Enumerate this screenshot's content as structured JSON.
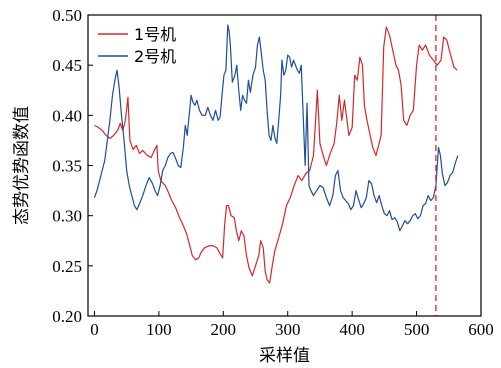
{
  "chart_data": {
    "type": "line",
    "xlabel": "采样值",
    "ylabel": "态势优势函数值",
    "xlim": [
      -10,
      600
    ],
    "ylim": [
      0.2,
      0.5
    ],
    "xticks": [
      0,
      100,
      200,
      300,
      400,
      500,
      600
    ],
    "yticks": [
      "0.20",
      "0.25",
      "0.30",
      "0.35",
      "0.40",
      "0.45",
      "0.50"
    ],
    "grid": false,
    "legend_position": "top-left",
    "vline": {
      "x": 530,
      "color": "#d62728",
      "style": "dashed"
    },
    "series": [
      {
        "name": "1号机",
        "color": "#d62728",
        "points": [
          [
            0,
            0.39
          ],
          [
            6,
            0.388
          ],
          [
            12,
            0.385
          ],
          [
            18,
            0.38
          ],
          [
            24,
            0.377
          ],
          [
            30,
            0.38
          ],
          [
            36,
            0.385
          ],
          [
            40,
            0.392
          ],
          [
            44,
            0.385
          ],
          [
            48,
            0.395
          ],
          [
            52,
            0.418
          ],
          [
            55,
            0.375
          ],
          [
            60,
            0.366
          ],
          [
            65,
            0.37
          ],
          [
            70,
            0.362
          ],
          [
            75,
            0.365
          ],
          [
            82,
            0.36
          ],
          [
            88,
            0.358
          ],
          [
            93,
            0.365
          ],
          [
            97,
            0.37
          ],
          [
            99,
            0.345
          ],
          [
            103,
            0.335
          ],
          [
            110,
            0.33
          ],
          [
            115,
            0.323
          ],
          [
            120,
            0.315
          ],
          [
            126,
            0.308
          ],
          [
            132,
            0.298
          ],
          [
            138,
            0.29
          ],
          [
            143,
            0.282
          ],
          [
            148,
            0.27
          ],
          [
            152,
            0.26
          ],
          [
            157,
            0.256
          ],
          [
            162,
            0.258
          ],
          [
            166,
            0.264
          ],
          [
            171,
            0.268
          ],
          [
            178,
            0.27
          ],
          [
            184,
            0.27
          ],
          [
            190,
            0.268
          ],
          [
            195,
            0.262
          ],
          [
            199,
            0.258
          ],
          [
            202,
            0.29
          ],
          [
            205,
            0.31
          ],
          [
            208,
            0.31
          ],
          [
            212,
            0.3
          ],
          [
            217,
            0.298
          ],
          [
            220,
            0.286
          ],
          [
            224,
            0.275
          ],
          [
            228,
            0.285
          ],
          [
            232,
            0.28
          ],
          [
            236,
            0.26
          ],
          [
            240,
            0.248
          ],
          [
            245,
            0.24
          ],
          [
            250,
            0.25
          ],
          [
            255,
            0.26
          ],
          [
            258,
            0.275
          ],
          [
            262,
            0.268
          ],
          [
            265,
            0.245
          ],
          [
            268,
            0.236
          ],
          [
            272,
            0.233
          ],
          [
            276,
            0.25
          ],
          [
            280,
            0.265
          ],
          [
            286,
            0.278
          ],
          [
            292,
            0.292
          ],
          [
            298,
            0.31
          ],
          [
            304,
            0.318
          ],
          [
            310,
            0.33
          ],
          [
            316,
            0.34
          ],
          [
            322,
            0.335
          ],
          [
            328,
            0.342
          ],
          [
            334,
            0.345
          ],
          [
            340,
            0.36
          ],
          [
            346,
            0.425
          ],
          [
            350,
            0.372
          ],
          [
            355,
            0.36
          ],
          [
            360,
            0.35
          ],
          [
            366,
            0.362
          ],
          [
            372,
            0.372
          ],
          [
            376,
            0.392
          ],
          [
            380,
            0.42
          ],
          [
            384,
            0.395
          ],
          [
            388,
            0.415
          ],
          [
            391,
            0.4
          ],
          [
            395,
            0.38
          ],
          [
            400,
            0.388
          ],
          [
            404,
            0.44
          ],
          [
            408,
            0.435
          ],
          [
            412,
            0.458
          ],
          [
            416,
            0.45
          ],
          [
            419,
            0.41
          ],
          [
            423,
            0.395
          ],
          [
            428,
            0.38
          ],
          [
            432,
            0.368
          ],
          [
            437,
            0.36
          ],
          [
            441,
            0.37
          ],
          [
            445,
            0.38
          ],
          [
            449,
            0.468
          ],
          [
            453,
            0.488
          ],
          [
            458,
            0.48
          ],
          [
            463,
            0.465
          ],
          [
            468,
            0.45
          ],
          [
            472,
            0.445
          ],
          [
            476,
            0.43
          ],
          [
            480,
            0.395
          ],
          [
            485,
            0.39
          ],
          [
            490,
            0.4
          ],
          [
            495,
            0.405
          ],
          [
            500,
            0.45
          ],
          [
            504,
            0.47
          ],
          [
            509,
            0.465
          ],
          [
            514,
            0.47
          ],
          [
            520,
            0.46
          ],
          [
            526,
            0.455
          ],
          [
            532,
            0.45
          ],
          [
            538,
            0.455
          ],
          [
            542,
            0.478
          ],
          [
            547,
            0.475
          ],
          [
            552,
            0.462
          ],
          [
            558,
            0.448
          ],
          [
            563,
            0.445
          ]
        ]
      },
      {
        "name": "2号机",
        "color": "#1f4e9a",
        "points": [
          [
            0,
            0.318
          ],
          [
            4,
            0.325
          ],
          [
            8,
            0.335
          ],
          [
            12,
            0.345
          ],
          [
            16,
            0.355
          ],
          [
            20,
            0.375
          ],
          [
            24,
            0.395
          ],
          [
            28,
            0.42
          ],
          [
            32,
            0.436
          ],
          [
            35,
            0.445
          ],
          [
            38,
            0.43
          ],
          [
            42,
            0.4
          ],
          [
            46,
            0.375
          ],
          [
            50,
            0.345
          ],
          [
            54,
            0.33
          ],
          [
            58,
            0.32
          ],
          [
            62,
            0.31
          ],
          [
            66,
            0.306
          ],
          [
            70,
            0.312
          ],
          [
            75,
            0.32
          ],
          [
            80,
            0.33
          ],
          [
            85,
            0.338
          ],
          [
            90,
            0.332
          ],
          [
            94,
            0.325
          ],
          [
            98,
            0.32
          ],
          [
            102,
            0.33
          ],
          [
            106,
            0.345
          ],
          [
            110,
            0.35
          ],
          [
            114,
            0.358
          ],
          [
            118,
            0.362
          ],
          [
            122,
            0.363
          ],
          [
            126,
            0.357
          ],
          [
            130,
            0.35
          ],
          [
            134,
            0.348
          ],
          [
            138,
            0.368
          ],
          [
            141,
            0.39
          ],
          [
            144,
            0.38
          ],
          [
            147,
            0.4
          ],
          [
            150,
            0.42
          ],
          [
            153,
            0.413
          ],
          [
            156,
            0.41
          ],
          [
            159,
            0.415
          ],
          [
            163,
            0.405
          ],
          [
            167,
            0.4
          ],
          [
            172,
            0.4
          ],
          [
            176,
            0.408
          ],
          [
            180,
            0.4
          ],
          [
            184,
            0.395
          ],
          [
            188,
            0.405
          ],
          [
            192,
            0.395
          ],
          [
            195,
            0.398
          ],
          [
            198,
            0.42
          ],
          [
            201,
            0.44
          ],
          [
            204,
            0.445
          ],
          [
            207,
            0.49
          ],
          [
            209,
            0.484
          ],
          [
            211,
            0.47
          ],
          [
            214,
            0.433
          ],
          [
            218,
            0.44
          ],
          [
            221,
            0.45
          ],
          [
            224,
            0.425
          ],
          [
            227,
            0.405
          ],
          [
            230,
            0.42
          ],
          [
            233,
            0.415
          ],
          [
            236,
            0.412
          ],
          [
            239,
            0.435
          ],
          [
            242,
            0.423
          ],
          [
            246,
            0.44
          ],
          [
            250,
            0.448
          ],
          [
            253,
            0.47
          ],
          [
            256,
            0.478
          ],
          [
            259,
            0.462
          ],
          [
            262,
            0.445
          ],
          [
            265,
            0.435
          ],
          [
            268,
            0.405
          ],
          [
            271,
            0.38
          ],
          [
            274,
            0.375
          ],
          [
            277,
            0.39
          ],
          [
            280,
            0.378
          ],
          [
            283,
            0.372
          ],
          [
            286,
            0.395
          ],
          [
            289,
            0.42
          ],
          [
            291,
            0.455
          ],
          [
            294,
            0.44
          ],
          [
            297,
            0.445
          ],
          [
            300,
            0.46
          ],
          [
            303,
            0.458
          ],
          [
            306,
            0.448
          ],
          [
            309,
            0.455
          ],
          [
            312,
            0.45
          ],
          [
            315,
            0.445
          ],
          [
            318,
            0.442
          ],
          [
            321,
            0.45
          ],
          [
            324,
            0.4
          ],
          [
            327,
            0.35
          ],
          [
            330,
            0.412
          ],
          [
            333,
            0.33
          ],
          [
            336,
            0.325
          ],
          [
            340,
            0.32
          ],
          [
            345,
            0.325
          ],
          [
            350,
            0.33
          ],
          [
            355,
            0.328
          ],
          [
            360,
            0.318
          ],
          [
            365,
            0.31
          ],
          [
            370,
            0.32
          ],
          [
            374,
            0.34
          ],
          [
            378,
            0.345
          ],
          [
            382,
            0.325
          ],
          [
            386,
            0.318
          ],
          [
            390,
            0.315
          ],
          [
            394,
            0.312
          ],
          [
            398,
            0.306
          ],
          [
            402,
            0.31
          ],
          [
            406,
            0.325
          ],
          [
            410,
            0.316
          ],
          [
            414,
            0.308
          ],
          [
            418,
            0.312
          ],
          [
            422,
            0.318
          ],
          [
            426,
            0.335
          ],
          [
            430,
            0.332
          ],
          [
            434,
            0.32
          ],
          [
            438,
            0.313
          ],
          [
            442,
            0.32
          ],
          [
            446,
            0.31
          ],
          [
            450,
            0.302
          ],
          [
            454,
            0.3
          ],
          [
            458,
            0.305
          ],
          [
            462,
            0.296
          ],
          [
            466,
            0.298
          ],
          [
            470,
            0.294
          ],
          [
            474,
            0.285
          ],
          [
            478,
            0.29
          ],
          [
            482,
            0.295
          ],
          [
            486,
            0.292
          ],
          [
            490,
            0.295
          ],
          [
            494,
            0.3
          ],
          [
            498,
            0.302
          ],
          [
            502,
            0.297
          ],
          [
            506,
            0.3
          ],
          [
            510,
            0.31
          ],
          [
            514,
            0.312
          ],
          [
            518,
            0.32
          ],
          [
            522,
            0.315
          ],
          [
            526,
            0.318
          ],
          [
            530,
            0.33
          ],
          [
            534,
            0.368
          ],
          [
            537,
            0.36
          ],
          [
            540,
            0.342
          ],
          [
            544,
            0.33
          ],
          [
            548,
            0.333
          ],
          [
            552,
            0.34
          ],
          [
            556,
            0.343
          ],
          [
            560,
            0.352
          ],
          [
            564,
            0.36
          ]
        ]
      }
    ]
  }
}
